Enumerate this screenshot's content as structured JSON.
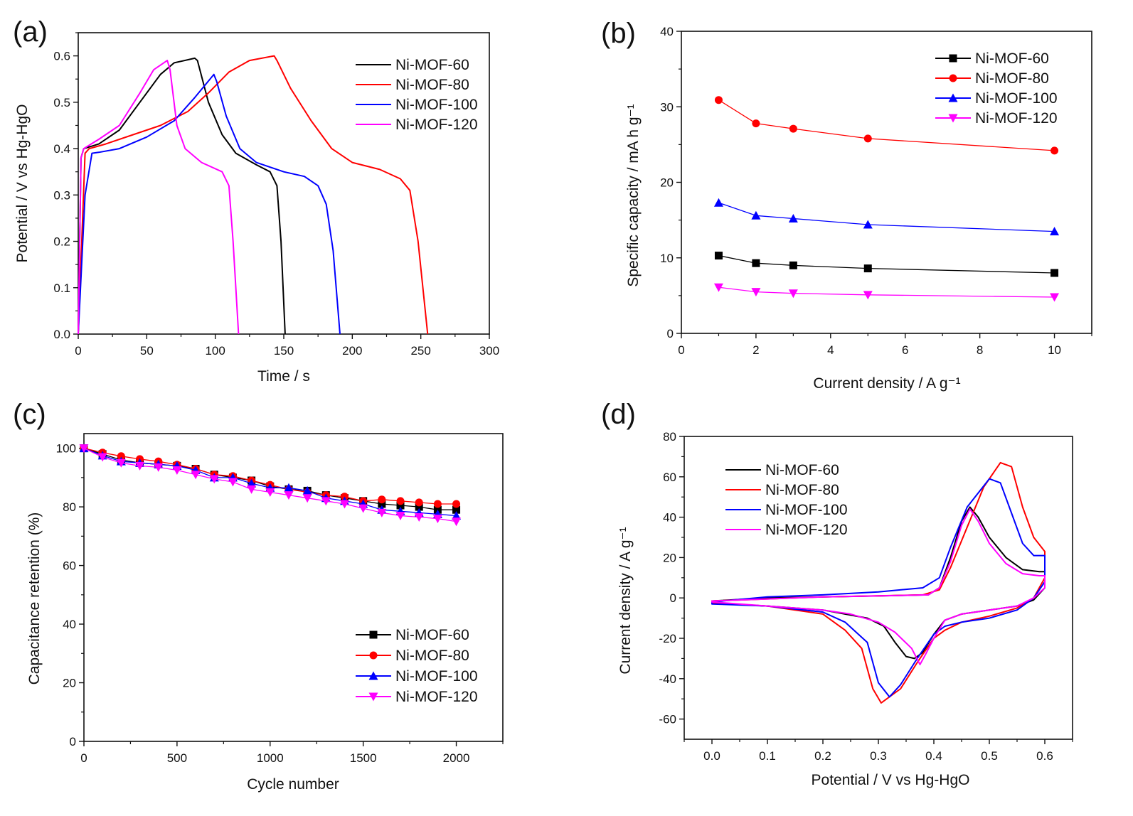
{
  "colors": {
    "Ni-MOF-60": "#000000",
    "Ni-MOF-80": "#ff0000",
    "Ni-MOF-100": "#0000ff",
    "Ni-MOF-120": "#ff00ff"
  },
  "chart_data": [
    {
      "panel": "(a)",
      "type": "line",
      "xlabel": "Time / s",
      "ylabel": "Potential / V vs Hg-HgO",
      "xlim": [
        0,
        300
      ],
      "ylim": [
        0,
        0.65
      ],
      "xticks": [
        0,
        50,
        100,
        150,
        200,
        250,
        300
      ],
      "yticks": [
        0.0,
        0.1,
        0.2,
        0.3,
        0.4,
        0.5,
        0.6
      ],
      "ytick_decimals": 1,
      "legend_position": "top-right",
      "series": [
        {
          "name": "Ni-MOF-60",
          "points": [
            [
              0,
              0
            ],
            [
              2,
              0.38
            ],
            [
              4,
              0.4
            ],
            [
              15,
              0.41
            ],
            [
              30,
              0.44
            ],
            [
              45,
              0.5
            ],
            [
              60,
              0.56
            ],
            [
              70,
              0.585
            ],
            [
              85,
              0.595
            ],
            [
              87,
              0.59
            ],
            [
              95,
              0.5
            ],
            [
              105,
              0.43
            ],
            [
              115,
              0.39
            ],
            [
              130,
              0.365
            ],
            [
              140,
              0.35
            ],
            [
              145,
              0.32
            ],
            [
              148,
              0.2
            ],
            [
              151,
              0
            ]
          ]
        },
        {
          "name": "Ni-MOF-80",
          "points": [
            [
              0,
              0
            ],
            [
              5,
              0.39
            ],
            [
              8,
              0.4
            ],
            [
              20,
              0.41
            ],
            [
              40,
              0.43
            ],
            [
              60,
              0.45
            ],
            [
              80,
              0.48
            ],
            [
              95,
              0.52
            ],
            [
              110,
              0.565
            ],
            [
              125,
              0.59
            ],
            [
              143,
              0.6
            ],
            [
              145,
              0.59
            ],
            [
              155,
              0.53
            ],
            [
              170,
              0.46
            ],
            [
              185,
              0.4
            ],
            [
              200,
              0.37
            ],
            [
              220,
              0.355
            ],
            [
              235,
              0.335
            ],
            [
              242,
              0.31
            ],
            [
              248,
              0.2
            ],
            [
              255,
              0
            ]
          ]
        },
        {
          "name": "Ni-MOF-100",
          "points": [
            [
              0,
              0
            ],
            [
              5,
              0.3
            ],
            [
              10,
              0.39
            ],
            [
              15,
              0.392
            ],
            [
              30,
              0.4
            ],
            [
              50,
              0.425
            ],
            [
              70,
              0.46
            ],
            [
              85,
              0.51
            ],
            [
              99,
              0.56
            ],
            [
              101,
              0.545
            ],
            [
              108,
              0.47
            ],
            [
              118,
              0.4
            ],
            [
              130,
              0.37
            ],
            [
              150,
              0.35
            ],
            [
              165,
              0.34
            ],
            [
              175,
              0.32
            ],
            [
              181,
              0.28
            ],
            [
              186,
              0.18
            ],
            [
              191,
              0
            ]
          ]
        },
        {
          "name": "Ni-MOF-120",
          "points": [
            [
              0,
              0
            ],
            [
              2,
              0.38
            ],
            [
              4,
              0.4
            ],
            [
              15,
              0.42
            ],
            [
              30,
              0.45
            ],
            [
              45,
              0.52
            ],
            [
              55,
              0.57
            ],
            [
              65,
              0.59
            ],
            [
              67,
              0.57
            ],
            [
              72,
              0.45
            ],
            [
              78,
              0.4
            ],
            [
              90,
              0.37
            ],
            [
              105,
              0.35
            ],
            [
              110,
              0.32
            ],
            [
              113,
              0.2
            ],
            [
              117,
              0
            ]
          ]
        }
      ]
    },
    {
      "panel": "(b)",
      "type": "line",
      "xlabel": "Current density / A g⁻¹",
      "ylabel": "Specific capacity / mA h g⁻¹",
      "xlim": [
        0,
        11
      ],
      "ylim": [
        0,
        40
      ],
      "xticks": [
        0,
        2,
        4,
        6,
        8,
        10
      ],
      "yticks": [
        0,
        10,
        20,
        30,
        40
      ],
      "ytick_decimals": 0,
      "legend_position": "top-right",
      "markers": true,
      "series": [
        {
          "name": "Ni-MOF-60",
          "marker": "square",
          "points": [
            [
              1,
              10.3
            ],
            [
              2,
              9.3
            ],
            [
              3,
              9.0
            ],
            [
              5,
              8.6
            ],
            [
              10,
              8.0
            ]
          ]
        },
        {
          "name": "Ni-MOF-80",
          "marker": "circle",
          "points": [
            [
              1,
              30.9
            ],
            [
              2,
              27.8
            ],
            [
              3,
              27.1
            ],
            [
              5,
              25.8
            ],
            [
              10,
              24.2
            ]
          ]
        },
        {
          "name": "Ni-MOF-100",
          "marker": "triangle-up",
          "points": [
            [
              1,
              17.3
            ],
            [
              2,
              15.6
            ],
            [
              3,
              15.2
            ],
            [
              5,
              14.4
            ],
            [
              10,
              13.5
            ]
          ]
        },
        {
          "name": "Ni-MOF-120",
          "marker": "triangle-down",
          "points": [
            [
              1,
              6.1
            ],
            [
              2,
              5.5
            ],
            [
              3,
              5.3
            ],
            [
              5,
              5.1
            ],
            [
              10,
              4.8
            ]
          ]
        }
      ]
    },
    {
      "panel": "(c)",
      "type": "line",
      "xlabel": "Cycle number",
      "ylabel": "Capacitance retention (%)",
      "xlim": [
        0,
        2250
      ],
      "ylim": [
        0,
        105
      ],
      "xticks": [
        0,
        500,
        1000,
        1500,
        2000
      ],
      "yticks": [
        0,
        20,
        40,
        60,
        80,
        100
      ],
      "ytick_decimals": 0,
      "legend_position": "bottom-right",
      "markers": true,
      "x": [
        0,
        100,
        200,
        300,
        400,
        500,
        600,
        700,
        800,
        900,
        1000,
        1100,
        1200,
        1300,
        1400,
        1500,
        1600,
        1700,
        1800,
        1900,
        2000
      ],
      "series": [
        {
          "name": "Ni-MOF-60",
          "marker": "square",
          "values": [
            100,
            98,
            96,
            95,
            94.5,
            94,
            93,
            91,
            90,
            89,
            87,
            86,
            85.5,
            84,
            83,
            82,
            81,
            80.5,
            80,
            79,
            79
          ]
        },
        {
          "name": "Ni-MOF-80",
          "marker": "circle",
          "values": [
            100,
            98.5,
            97.3,
            96.3,
            95.5,
            94.4,
            93,
            91,
            90.5,
            89,
            87.5,
            86,
            85,
            84,
            83.5,
            82,
            82.5,
            82,
            81.5,
            81,
            81
          ]
        },
        {
          "name": "Ni-MOF-100",
          "marker": "triangle-up",
          "values": [
            100,
            97.5,
            95.5,
            95,
            94.5,
            94,
            92.5,
            90,
            90,
            88,
            86.5,
            86.5,
            85.5,
            83,
            82,
            81,
            79,
            78.5,
            78,
            77.5,
            77
          ]
        },
        {
          "name": "Ni-MOF-120",
          "marker": "triangle-down",
          "values": [
            100,
            97,
            95,
            94,
            93.5,
            92.5,
            91,
            89.5,
            88.5,
            86,
            85,
            84,
            83,
            82,
            81,
            79.5,
            78,
            77,
            76.5,
            76,
            75
          ]
        }
      ]
    },
    {
      "panel": "(d)",
      "type": "line",
      "xlabel": "Potential / V vs Hg-HgO",
      "ylabel": "Current density  / A g⁻¹",
      "xlim": [
        -0.05,
        0.65
      ],
      "ylim": [
        -70,
        80
      ],
      "xticks": [
        0.0,
        0.1,
        0.2,
        0.3,
        0.4,
        0.5,
        0.6
      ],
      "xtick_decimals": 1,
      "yticks": [
        -60,
        -40,
        -20,
        0,
        20,
        40,
        60,
        80
      ],
      "ytick_decimals": 0,
      "legend_position": "top-left",
      "closed": true,
      "series": [
        {
          "name": "Ni-MOF-60",
          "points": [
            [
              0,
              -1.5
            ],
            [
              0.1,
              0
            ],
            [
              0.2,
              0.5
            ],
            [
              0.3,
              1
            ],
            [
              0.39,
              1.5
            ],
            [
              0.41,
              5
            ],
            [
              0.43,
              20
            ],
            [
              0.45,
              38
            ],
            [
              0.465,
              45
            ],
            [
              0.48,
              40
            ],
            [
              0.5,
              30
            ],
            [
              0.53,
              20
            ],
            [
              0.56,
              14
            ],
            [
              0.59,
              13
            ],
            [
              0.6,
              13
            ],
            [
              0.6,
              5
            ],
            [
              0.58,
              -1
            ],
            [
              0.55,
              -4
            ],
            [
              0.5,
              -6
            ],
            [
              0.45,
              -8
            ],
            [
              0.42,
              -11
            ],
            [
              0.4,
              -18
            ],
            [
              0.38,
              -27
            ],
            [
              0.365,
              -30
            ],
            [
              0.35,
              -29
            ],
            [
              0.33,
              -22
            ],
            [
              0.31,
              -14
            ],
            [
              0.28,
              -10
            ],
            [
              0.2,
              -6
            ],
            [
              0.1,
              -4
            ],
            [
              0,
              -2.5
            ]
          ]
        },
        {
          "name": "Ni-MOF-80",
          "points": [
            [
              0,
              -1.5
            ],
            [
              0.2,
              0.5
            ],
            [
              0.38,
              1.5
            ],
            [
              0.41,
              4
            ],
            [
              0.43,
              15
            ],
            [
              0.46,
              35
            ],
            [
              0.49,
              55
            ],
            [
              0.52,
              67
            ],
            [
              0.54,
              65
            ],
            [
              0.56,
              45
            ],
            [
              0.58,
              30
            ],
            [
              0.6,
              23
            ],
            [
              0.6,
              10
            ],
            [
              0.58,
              0
            ],
            [
              0.55,
              -5
            ],
            [
              0.5,
              -9
            ],
            [
              0.45,
              -12
            ],
            [
              0.42,
              -16
            ],
            [
              0.4,
              -20
            ],
            [
              0.37,
              -32
            ],
            [
              0.34,
              -45
            ],
            [
              0.305,
              -52
            ],
            [
              0.29,
              -45
            ],
            [
              0.27,
              -25
            ],
            [
              0.24,
              -16
            ],
            [
              0.2,
              -8
            ],
            [
              0.1,
              -4
            ],
            [
              0,
              -2.5
            ]
          ]
        },
        {
          "name": "Ni-MOF-100",
          "points": [
            [
              0,
              -2
            ],
            [
              0.1,
              0.5
            ],
            [
              0.2,
              1.5
            ],
            [
              0.3,
              3
            ],
            [
              0.38,
              5
            ],
            [
              0.41,
              10
            ],
            [
              0.43,
              25
            ],
            [
              0.46,
              45
            ],
            [
              0.5,
              59
            ],
            [
              0.52,
              57
            ],
            [
              0.54,
              42
            ],
            [
              0.56,
              27
            ],
            [
              0.58,
              21
            ],
            [
              0.6,
              21
            ],
            [
              0.6,
              8
            ],
            [
              0.58,
              0
            ],
            [
              0.55,
              -6
            ],
            [
              0.5,
              -10
            ],
            [
              0.45,
              -12
            ],
            [
              0.42,
              -14
            ],
            [
              0.4,
              -18
            ],
            [
              0.37,
              -30
            ],
            [
              0.34,
              -43
            ],
            [
              0.32,
              -49
            ],
            [
              0.3,
              -42
            ],
            [
              0.28,
              -22
            ],
            [
              0.24,
              -12
            ],
            [
              0.2,
              -7
            ],
            [
              0.1,
              -4
            ],
            [
              0,
              -3
            ]
          ]
        },
        {
          "name": "Ni-MOF-120",
          "points": [
            [
              0,
              -1.5
            ],
            [
              0.2,
              0.5
            ],
            [
              0.39,
              1.5
            ],
            [
              0.41,
              5
            ],
            [
              0.43,
              18
            ],
            [
              0.45,
              36
            ],
            [
              0.465,
              44
            ],
            [
              0.48,
              38
            ],
            [
              0.5,
              27
            ],
            [
              0.53,
              17
            ],
            [
              0.56,
              12
            ],
            [
              0.59,
              11
            ],
            [
              0.6,
              11
            ],
            [
              0.6,
              5
            ],
            [
              0.58,
              0
            ],
            [
              0.55,
              -4
            ],
            [
              0.5,
              -6
            ],
            [
              0.45,
              -8
            ],
            [
              0.42,
              -11
            ],
            [
              0.4,
              -20
            ],
            [
              0.385,
              -28
            ],
            [
              0.375,
              -33
            ],
            [
              0.36,
              -25
            ],
            [
              0.33,
              -17
            ],
            [
              0.3,
              -12
            ],
            [
              0.25,
              -8
            ],
            [
              0.2,
              -6
            ],
            [
              0.1,
              -4
            ],
            [
              0,
              -2
            ]
          ]
        }
      ]
    }
  ]
}
